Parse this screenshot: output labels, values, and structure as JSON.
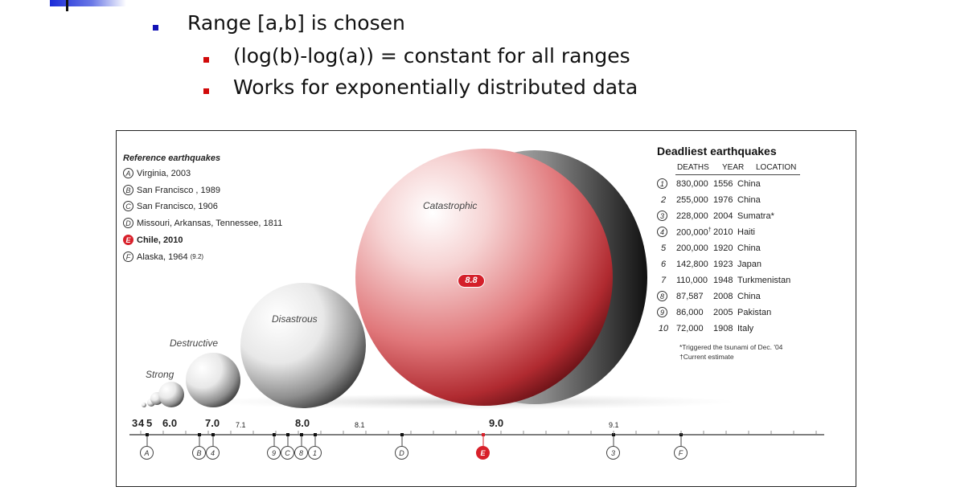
{
  "slide": {
    "bullets": [
      {
        "text": "Range [a,b] is chosen",
        "level": 1
      },
      {
        "text": "(log(b)-log(a)) = constant for all ranges",
        "level": 2
      },
      {
        "text": "Works for exponentially distributed data",
        "level": 2
      }
    ],
    "colors": {
      "level1_bullet": "#1212b5",
      "level2_bullet": "#d10a0a",
      "accent_red": "#d8202a"
    }
  },
  "figure": {
    "reference_title": "Reference earthquakes",
    "reference_items": [
      {
        "mark": "A",
        "text": "Virginia, 2003"
      },
      {
        "mark": "B",
        "text": "San Francisco , 1989"
      },
      {
        "mark": "C",
        "text": "San Francisco, 1906"
      },
      {
        "mark": "D",
        "text": "Missouri, Arkansas, Tennessee, 1811"
      },
      {
        "mark": "E",
        "text": "Chile, 2010"
      },
      {
        "mark": "F",
        "text": "Alaska, 1964",
        "note": "(9.2)"
      }
    ],
    "categories": {
      "strong": "Strong",
      "destructive": "Destructive",
      "disastrous": "Disastrous",
      "catastrophic": "Catastrophic"
    },
    "highlight_label": "8.8",
    "deadliest": {
      "title": "Deadliest earthquakes",
      "headers": {
        "deaths": "DEATHS",
        "year": "YEAR",
        "location": "LOCATION"
      },
      "rows": [
        {
          "rank": "1",
          "circled": true,
          "deaths": "830,000",
          "year": "1556",
          "location": "China"
        },
        {
          "rank": "2",
          "circled": false,
          "deaths": "255,000",
          "year": "1976",
          "location": "China"
        },
        {
          "rank": "3",
          "circled": true,
          "deaths": "228,000",
          "year": "2004",
          "location": "Sumatra*"
        },
        {
          "rank": "4",
          "circled": true,
          "deaths": "200,000",
          "year": "2010",
          "location": "Haiti",
          "mark": "†"
        },
        {
          "rank": "5",
          "circled": false,
          "deaths": "200,000",
          "year": "1920",
          "location": "China"
        },
        {
          "rank": "6",
          "circled": false,
          "deaths": "142,800",
          "year": "1923",
          "location": "Japan"
        },
        {
          "rank": "7",
          "circled": false,
          "deaths": "110,000",
          "year": "1948",
          "location": "Turkmenistan"
        },
        {
          "rank": "8",
          "circled": true,
          "deaths": "87,587",
          "year": "2008",
          "location": "China"
        },
        {
          "rank": "9",
          "circled": true,
          "deaths": "86,000",
          "year": "2005",
          "location": "Pakistan"
        },
        {
          "rank": "10",
          "circled": false,
          "deaths": "72,000",
          "year": "1908",
          "location": "Italy"
        }
      ],
      "footnotes": [
        "*Triggered the tsunami of Dec. '04",
        "†Current estimate"
      ]
    },
    "axis": {
      "labels": [
        {
          "text": "3",
          "big": true
        },
        {
          "text": "4",
          "big": true
        },
        {
          "text": "5",
          "big": true
        },
        {
          "text": "6.0",
          "big": true
        },
        {
          "text": "7.0",
          "big": true
        },
        {
          "text": "7.1",
          "big": false
        },
        {
          "text": "8.0",
          "big": true
        },
        {
          "text": "8.1",
          "big": false
        },
        {
          "text": "9.0",
          "big": true
        },
        {
          "text": "9.1",
          "big": false
        }
      ],
      "markers": [
        {
          "text": "A",
          "red": false
        },
        {
          "text": "B",
          "red": false
        },
        {
          "text": "4",
          "red": false
        },
        {
          "text": "9",
          "red": false
        },
        {
          "text": "C",
          "red": false
        },
        {
          "text": "8",
          "red": false
        },
        {
          "text": "1",
          "red": false
        },
        {
          "text": "D",
          "red": false
        },
        {
          "text": "E",
          "red": true
        },
        {
          "text": "3",
          "red": false
        },
        {
          "text": "F",
          "red": false
        }
      ]
    }
  }
}
